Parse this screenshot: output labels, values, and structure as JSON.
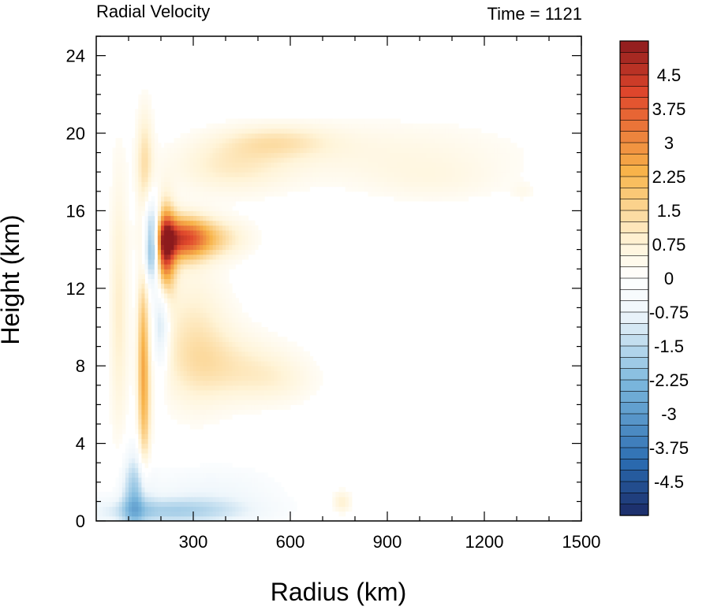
{
  "chart_data": {
    "type": "heatmap",
    "title_left": "Radial Velocity",
    "title_right": "Time = 1121",
    "xlabel": "Radius (km)",
    "ylabel": "Height (km)",
    "xlim": [
      0,
      1500
    ],
    "ylim": [
      0,
      25
    ],
    "x_ticks": [
      300,
      600,
      900,
      1200,
      1500
    ],
    "x_tick_labels": [
      "300",
      "600",
      "900",
      "1200",
      "1500"
    ],
    "y_ticks": [
      0,
      4,
      8,
      12,
      16,
      20,
      24
    ],
    "y_tick_labels": [
      "0",
      "4",
      "8",
      "12",
      "16",
      "20",
      "24"
    ],
    "colorbar": {
      "min": -5.25,
      "max": 5.25,
      "step": 0.25,
      "labels": [
        "4.5",
        "3.75",
        "3",
        "2.25",
        "1.5",
        "0.75",
        "0",
        "-0.75",
        "-1.5",
        "-2.25",
        "-3",
        "-3.75",
        "-4.5"
      ],
      "label_values": [
        4.5,
        3.75,
        3,
        2.25,
        1.5,
        0.75,
        0,
        -0.75,
        -1.5,
        -2.25,
        -3,
        -3.75,
        -4.5
      ],
      "palette": {
        "pos_light": "#fff4d8",
        "pos_mid": "#f8b44a",
        "pos_high": "#e0472c",
        "pos_max": "#8c1a1d",
        "neg_light": "#eef6fb",
        "neg_mid": "#7ab6dc",
        "neg_high": "#2a6bb0",
        "neg_max": "#1b2a66"
      }
    },
    "features": [
      {
        "x": 178,
        "y": 14.3,
        "sx": 20,
        "sy": 1.4,
        "value": -5.2
      },
      {
        "x": 205,
        "y": 14.1,
        "sx": 25,
        "sy": 1.5,
        "value": 5.3
      },
      {
        "x": 265,
        "y": 14.6,
        "sx": 55,
        "sy": 0.8,
        "value": 2.8
      },
      {
        "x": 330,
        "y": 14.6,
        "sx": 90,
        "sy": 0.7,
        "value": 1.6
      },
      {
        "x": 420,
        "y": 18.3,
        "sx": 130,
        "sy": 1.0,
        "value": 0.9
      },
      {
        "x": 560,
        "y": 19.6,
        "sx": 120,
        "sy": 0.6,
        "value": 0.9
      },
      {
        "x": 900,
        "y": 19.0,
        "sx": 300,
        "sy": 1.2,
        "value": 0.5
      },
      {
        "x": 1050,
        "y": 17.5,
        "sx": 150,
        "sy": 0.8,
        "value": 0.35
      },
      {
        "x": 300,
        "y": 9.5,
        "sx": 80,
        "sy": 2.5,
        "value": 1.0
      },
      {
        "x": 420,
        "y": 8.0,
        "sx": 120,
        "sy": 1.3,
        "value": 0.8
      },
      {
        "x": 560,
        "y": 7.3,
        "sx": 90,
        "sy": 0.9,
        "value": 0.5
      },
      {
        "x": 145,
        "y": 9.0,
        "sx": 12,
        "sy": 3.2,
        "value": 1.9
      },
      {
        "x": 150,
        "y": 5.0,
        "sx": 14,
        "sy": 2.5,
        "value": 1.2
      },
      {
        "x": 150,
        "y": 18.5,
        "sx": 18,
        "sy": 2.0,
        "value": 1.2
      },
      {
        "x": 70,
        "y": 11.0,
        "sx": 20,
        "sy": 5.0,
        "value": 0.9
      },
      {
        "x": 200,
        "y": 10.2,
        "sx": 18,
        "sy": 1.8,
        "value": -1.6
      },
      {
        "x": 120,
        "y": 1.5,
        "sx": 30,
        "sy": 1.5,
        "value": -1.8
      },
      {
        "x": 220,
        "y": 0.5,
        "sx": 180,
        "sy": 0.5,
        "value": -1.5
      },
      {
        "x": 350,
        "y": 1.5,
        "sx": 150,
        "sy": 1.0,
        "value": -0.6
      },
      {
        "x": 760,
        "y": 1.0,
        "sx": 20,
        "sy": 0.4,
        "value": 0.9
      },
      {
        "x": 1320,
        "y": 17.0,
        "sx": 25,
        "sy": 0.3,
        "value": 0.3
      }
    ]
  }
}
